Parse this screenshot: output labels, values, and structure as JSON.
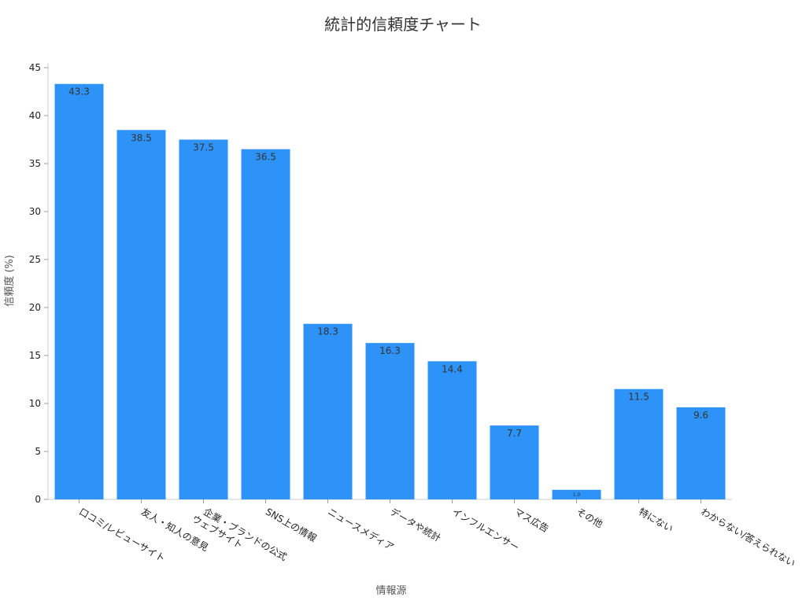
{
  "chart_data": {
    "type": "bar",
    "title": "統計的信頼度チャート",
    "xlabel": "情報源",
    "ylabel": "信頼度 (%)",
    "ylim": [
      0,
      45
    ],
    "yticks": [
      0,
      5,
      10,
      15,
      20,
      25,
      30,
      35,
      40,
      45
    ],
    "categories": [
      "口コミ/レビューサイト",
      "友人・知人の意見",
      "企業・ブランドの公式\nウェブサイト",
      "SNS上の情報",
      "ニュースメディア",
      "データや統計",
      "インフルエンサー",
      "マス広告",
      "その他",
      "特にない",
      "わからない/答えられない"
    ],
    "values": [
      43.3,
      38.5,
      37.5,
      36.5,
      18.3,
      16.3,
      14.4,
      7.7,
      1.0,
      11.5,
      9.6
    ],
    "data_labels": [
      "43.3",
      "38.5",
      "37.5",
      "36.5",
      "18.3",
      "16.3",
      "14.4",
      "7.7",
      "1.0",
      "11.5",
      "9.6"
    ],
    "colors": {
      "bar": "#2e93f8",
      "text": "#333333",
      "axis": "#cccccc"
    },
    "grid": false,
    "legend": "none"
  }
}
